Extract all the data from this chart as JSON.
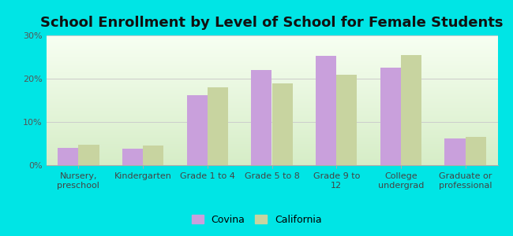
{
  "title": "School Enrollment by Level of School for Female Students",
  "categories": [
    "Nursery,\npreschool",
    "Kindergarten",
    "Grade 1 to 4",
    "Grade 5 to 8",
    "Grade 9 to\n12",
    "College\nundergrad",
    "Graduate or\nprofessional"
  ],
  "covina": [
    4.0,
    3.8,
    16.2,
    22.0,
    25.2,
    22.5,
    6.1
  ],
  "california": [
    4.8,
    4.5,
    18.0,
    19.0,
    21.0,
    25.5,
    6.5
  ],
  "covina_color": "#c9a0dc",
  "california_color": "#c8d4a0",
  "background_color": "#00e5e5",
  "ylim": [
    0,
    30
  ],
  "yticks": [
    0,
    10,
    20,
    30
  ],
  "ytick_labels": [
    "0%",
    "10%",
    "20%",
    "30%"
  ],
  "legend_covina": "Covina",
  "legend_california": "California",
  "title_fontsize": 13,
  "tick_fontsize": 8,
  "legend_fontsize": 9,
  "bar_width": 0.32
}
